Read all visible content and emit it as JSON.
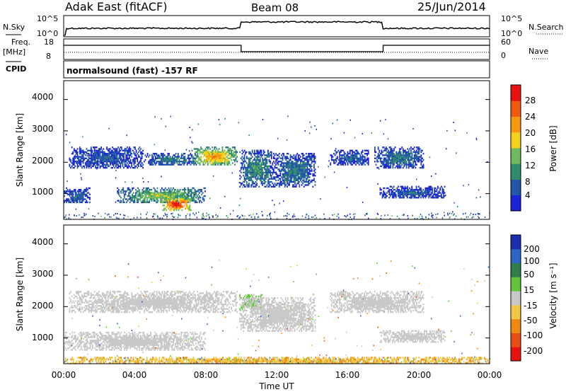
{
  "header": {
    "site": "Adak East (fitACF)",
    "beam": "Beam 08",
    "date": "25/Jun/2014"
  },
  "top_panels": {
    "nsky_label": "N.Sky",
    "nsky_ticks": [
      "10^5",
      "10^0"
    ],
    "nsearch_label": "N.Search",
    "nsearch_ticks": [
      "10^5",
      "10^0"
    ],
    "freq_label_1": "Freq.",
    "freq_label_2": "[MHz]",
    "freq_ticks": [
      "18",
      "8"
    ],
    "nave_label": "Nave",
    "nave_ticks": [
      "60",
      "0"
    ],
    "cpid_label": "CPID",
    "cpid_text": "normalsound (fast) -157 RF"
  },
  "panels": {
    "power": {
      "ylabel": "Slant Range [km]",
      "yticks": [
        "4000",
        "3000",
        "2000",
        "1000"
      ],
      "cbar_label": "Power [dB]",
      "cbar_ticks": [
        "28",
        "24",
        "20",
        "16",
        "12",
        "8",
        "4"
      ],
      "cbar_colors": [
        "#e8110f",
        "#f05a0f",
        "#f7970f",
        "#f4d11a",
        "#6fba5e",
        "#318c6c",
        "#2355a8",
        "#1c22d8"
      ]
    },
    "velocity": {
      "ylabel": "Slant Range [km]",
      "yticks": [
        "4000",
        "3000",
        "2000",
        "1000"
      ],
      "cbar_label": "Velocity [m s⁻¹]",
      "cbar_ticks": [
        "200",
        "100",
        "50",
        "15",
        "-15",
        "-50",
        "-100",
        "-200"
      ],
      "cbar_colors": [
        "#1c2fb0",
        "#2c65c4",
        "#2f7e4a",
        "#63c63a",
        "#c8c8c8",
        "#f2c744",
        "#f0890f",
        "#ea4d12",
        "#e8110f"
      ]
    }
  },
  "xaxis": {
    "ticks": [
      "00:00",
      "04:00",
      "08:00",
      "12:00",
      "16:00",
      "20:00",
      "00:00"
    ],
    "label": "Time UT"
  },
  "chart_data": [
    {
      "type": "heatmap",
      "title": "Power [dB]",
      "xlabel": "Time UT",
      "ylabel": "Slant Range [km]",
      "xlim": [
        0,
        24
      ],
      "ylim": [
        180,
        4600
      ],
      "clim": [
        0,
        32
      ],
      "echo_regions": [
        {
          "t": [
            0.3,
            4.5
          ],
          "r": [
            1800,
            2500
          ],
          "value": 6
        },
        {
          "t": [
            4.5,
            7.5
          ],
          "r": [
            1900,
            2300
          ],
          "value": 8
        },
        {
          "t": [
            7.2,
            9.8
          ],
          "r": [
            1900,
            2500
          ],
          "value": 20
        },
        {
          "t": [
            9.9,
            11.8
          ],
          "r": [
            1200,
            2400
          ],
          "value": 10
        },
        {
          "t": [
            11.8,
            14.2
          ],
          "r": [
            1200,
            2300
          ],
          "value": 8
        },
        {
          "t": [
            15.0,
            17.2
          ],
          "r": [
            1900,
            2400
          ],
          "value": 6
        },
        {
          "t": [
            17.5,
            20.3
          ],
          "r": [
            1800,
            2500
          ],
          "value": 8
        },
        {
          "t": [
            0.0,
            1.5
          ],
          "r": [
            700,
            1200
          ],
          "value": 6
        },
        {
          "t": [
            3.0,
            8.0
          ],
          "r": [
            700,
            1200
          ],
          "value": 14
        },
        {
          "t": [
            5.5,
            7.2
          ],
          "r": [
            450,
            900
          ],
          "value": 28
        },
        {
          "t": [
            17.8,
            21.5
          ],
          "r": [
            850,
            1250
          ],
          "value": 6
        }
      ]
    },
    {
      "type": "heatmap",
      "title": "Velocity [m s⁻¹]",
      "xlabel": "Time UT",
      "ylabel": "Slant Range [km]",
      "xlim": [
        0,
        24
      ],
      "ylim": [
        180,
        4600
      ],
      "clim": [
        -250,
        250
      ],
      "echo_regions": [
        {
          "t": [
            0.3,
            9.8
          ],
          "r": [
            1800,
            2500
          ],
          "value": 0
        },
        {
          "t": [
            9.9,
            11.2
          ],
          "r": [
            1900,
            2400
          ],
          "value": 40
        },
        {
          "t": [
            9.9,
            14.2
          ],
          "r": [
            1200,
            2300
          ],
          "value": 0
        },
        {
          "t": [
            15.0,
            20.3
          ],
          "r": [
            1800,
            2500
          ],
          "value": 0
        },
        {
          "t": [
            0.0,
            8.0
          ],
          "r": [
            600,
            1200
          ],
          "value": 0
        },
        {
          "t": [
            17.8,
            21.5
          ],
          "r": [
            850,
            1250
          ],
          "value": 0
        },
        {
          "t": [
            0.0,
            24.0
          ],
          "r": [
            180,
            400
          ],
          "value": -40
        }
      ]
    }
  ]
}
